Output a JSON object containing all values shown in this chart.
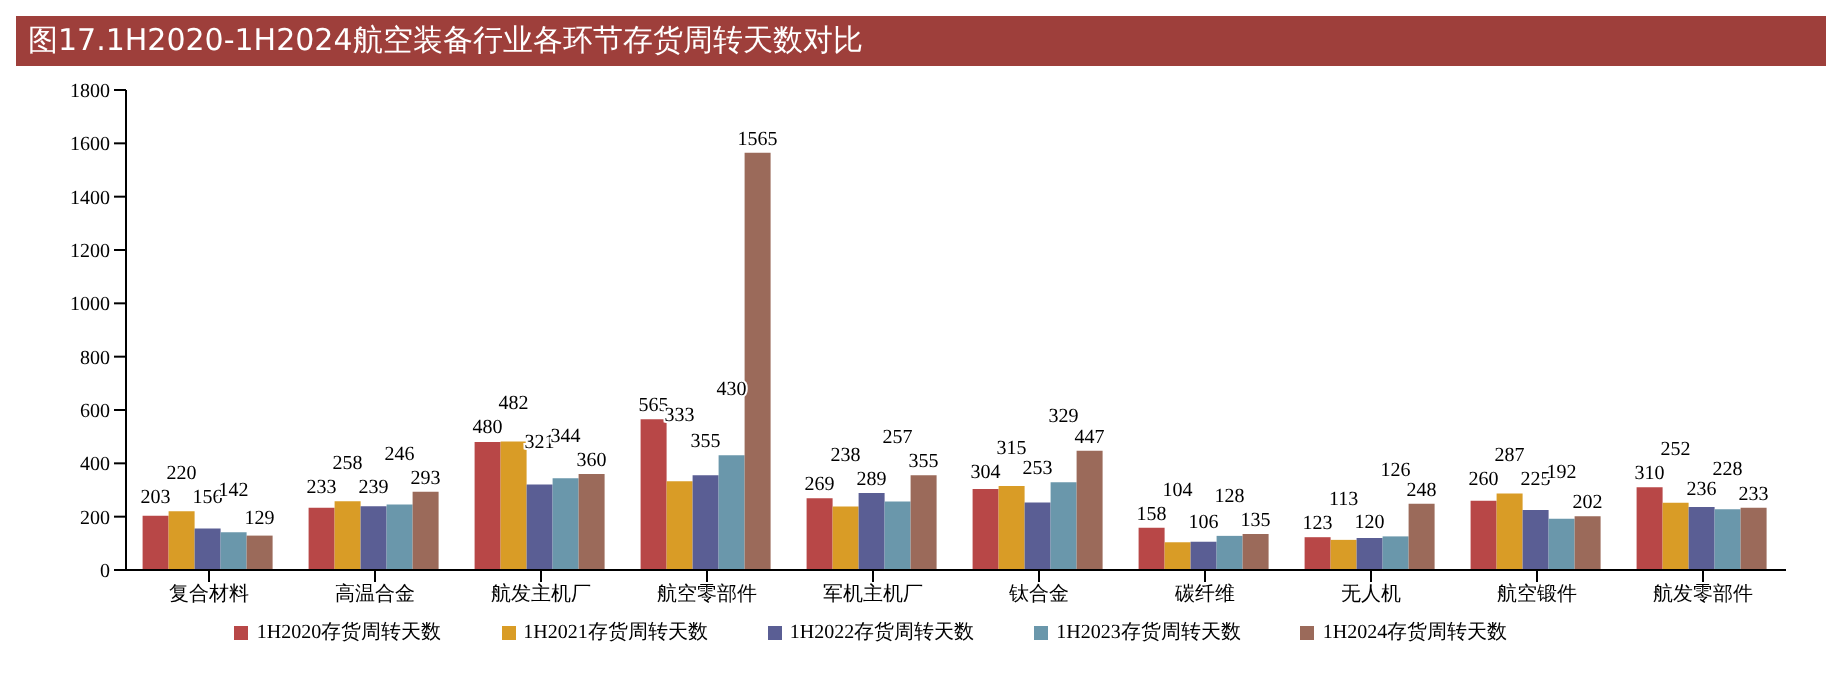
{
  "chart_data": {
    "type": "bar",
    "title": "图17.1H2020-1H2024航空装备行业各环节存货周转天数对比",
    "categories": [
      "复合材料",
      "高温合金",
      "航发主机厂",
      "航空零部件",
      "军机主机厂",
      "钛合金",
      "碳纤维",
      "无人机",
      "航空锻件",
      "航发零部件"
    ],
    "series": [
      {
        "name": "1H2020存货周转天数",
        "color": "#b84747",
        "values": [
          203,
          233,
          480,
          565,
          269,
          304,
          158,
          123,
          260,
          310
        ]
      },
      {
        "name": "1H2021存货周转天数",
        "color": "#d99c26",
        "values": [
          220,
          258,
          482,
          333,
          238,
          315,
          104,
          113,
          287,
          252
        ]
      },
      {
        "name": "1H2022存货周转天数",
        "color": "#5a5e94",
        "values": [
          156,
          239,
          321,
          355,
          289,
          253,
          106,
          120,
          225,
          236
        ]
      },
      {
        "name": "1H2023存货周转天数",
        "color": "#6a97ab",
        "values": [
          142,
          246,
          344,
          430,
          257,
          329,
          128,
          126,
          192,
          228
        ]
      },
      {
        "name": "1H2024存货周转天数",
        "color": "#9b6a5a",
        "values": [
          129,
          293,
          360,
          1565,
          355,
          447,
          135,
          248,
          202,
          233
        ]
      }
    ],
    "ylim": [
      0,
      1800
    ],
    "yticks": [
      0,
      200,
      400,
      600,
      800,
      1000,
      1200,
      1400,
      1600,
      1800
    ],
    "grid": false,
    "legend": "bottom",
    "data_labels": true
  }
}
